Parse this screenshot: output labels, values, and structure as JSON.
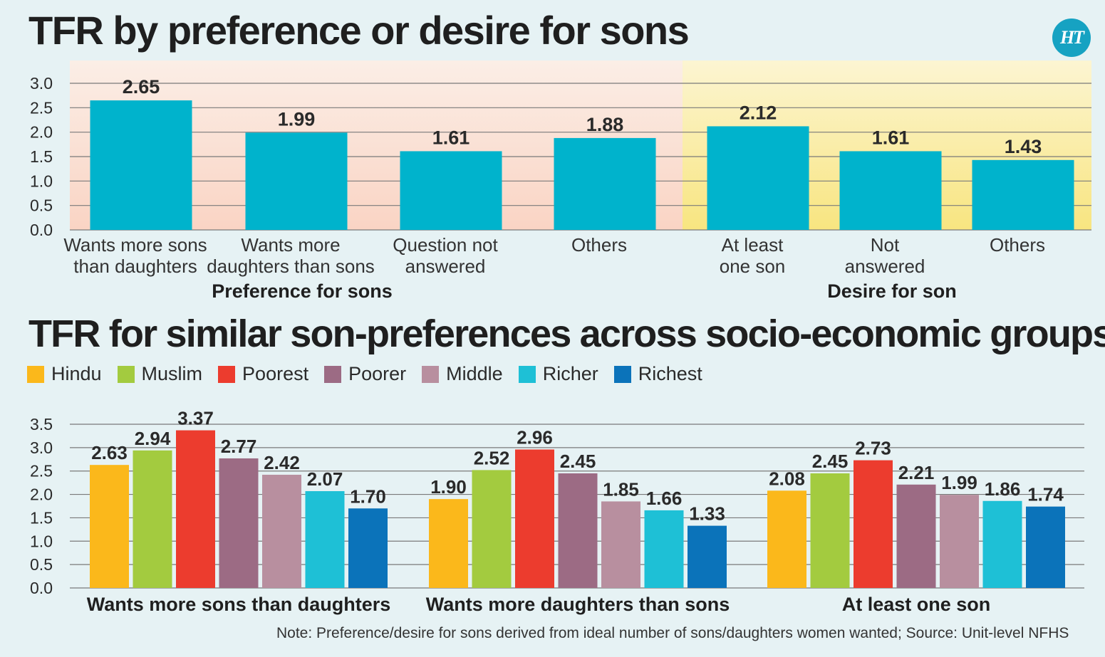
{
  "logo_text": "HT",
  "note": "Note: Preference/desire for sons derived from ideal number of sons/daughters women wanted; Source: Unit-level NFHS",
  "chart_data": [
    {
      "type": "bar",
      "title": "TFR by preference or desire for sons",
      "categories": [
        [
          "Wants more sons",
          "than daughters"
        ],
        [
          "Wants more",
          "daughters than sons"
        ],
        [
          "Question not",
          "answered"
        ],
        [
          "Others"
        ],
        [
          "At least",
          "one son"
        ],
        [
          "Not",
          "answered"
        ],
        [
          "Others"
        ]
      ],
      "values": [
        2.65,
        1.99,
        1.61,
        1.88,
        2.12,
        1.61,
        1.43
      ],
      "value_labels": [
        "2.65",
        "1.99",
        "1.61",
        "1.88",
        "2.12",
        "1.61",
        "1.43"
      ],
      "groups": [
        {
          "label": "Preference for sons",
          "start": 0,
          "end": 3
        },
        {
          "label": "Desire for son",
          "start": 4,
          "end": 6
        }
      ],
      "yticks": [
        "0.0",
        "0.5",
        "1.0",
        "1.5",
        "2.0",
        "2.5",
        "3.0"
      ],
      "ylim": [
        0,
        3.0
      ],
      "grid": true,
      "colors": {
        "bar": "#00b3cc",
        "group1_bg_top": "#fbeee6",
        "group1_bg_bottom": "#fad4c4",
        "group2_bg_top": "#fcf5d2",
        "group2_bg_bottom": "#f8e580"
      }
    },
    {
      "type": "bar",
      "title": "TFR for similar son-preferences across socio-economic groups",
      "categories": [
        "Wants more sons than daughters",
        "Wants more daughters than sons",
        "At least one son"
      ],
      "series": [
        {
          "name": "Hindu",
          "color": "#fbb81b",
          "values": [
            2.63,
            1.9,
            2.08
          ],
          "labels": [
            "2.63",
            "1.90",
            "2.08"
          ]
        },
        {
          "name": "Muslim",
          "color": "#a3cb3f",
          "values": [
            2.94,
            2.52,
            2.45
          ],
          "labels": [
            "2.94",
            "2.52",
            "2.45"
          ]
        },
        {
          "name": "Poorest",
          "color": "#ec3c2e",
          "values": [
            3.37,
            2.96,
            2.73
          ],
          "labels": [
            "3.37",
            "2.96",
            "2.73"
          ]
        },
        {
          "name": "Poorer",
          "color": "#9c6b84",
          "values": [
            2.77,
            2.45,
            2.21
          ],
          "labels": [
            "2.77",
            "2.45",
            "2.21"
          ]
        },
        {
          "name": "Middle",
          "color": "#b88f9f",
          "values": [
            2.42,
            1.85,
            1.99
          ],
          "labels": [
            "2.42",
            "1.85",
            "1.99"
          ]
        },
        {
          "name": "Richer",
          "color": "#1ec0d6",
          "values": [
            2.07,
            1.66,
            1.86
          ],
          "labels": [
            "2.07",
            "1.66",
            "1.86"
          ]
        },
        {
          "name": "Richest",
          "color": "#0b73ba",
          "values": [
            1.7,
            1.33,
            1.74
          ],
          "labels": [
            "1.70",
            "1.33",
            "1.74"
          ]
        }
      ],
      "yticks": [
        "0.0",
        "0.5",
        "1.0",
        "1.5",
        "2.0",
        "2.5",
        "3.0",
        "3.5"
      ],
      "ylim": [
        0,
        3.5
      ],
      "grid": true,
      "legend": "top-left"
    }
  ]
}
